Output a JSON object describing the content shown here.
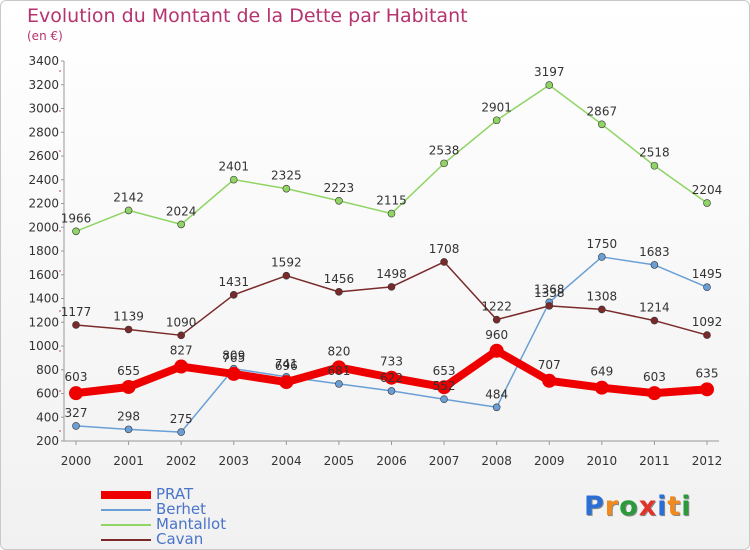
{
  "title": "Evolution du Montant de la Dette par Habitant",
  "subtitle": "(en €)",
  "logo": {
    "text": "Proxiti",
    "letters": [
      "P",
      "r",
      "o",
      "x",
      "i",
      "t",
      "i"
    ],
    "colors": [
      "#2b6fd6",
      "#f08a1c",
      "#2b9a3a",
      "#e2332a",
      "#2b6fd6",
      "#f08a1c",
      "#2b9a3a"
    ]
  },
  "chart_data": {
    "type": "line",
    "title": "Evolution du Montant de la Dette par Habitant",
    "ylabel": "(en €)",
    "xlabel": "",
    "ylim": [
      200,
      3400
    ],
    "yticks": [
      200,
      400,
      600,
      800,
      1000,
      1200,
      1400,
      1600,
      1800,
      2000,
      2200,
      2400,
      2600,
      2800,
      3000,
      3200,
      3400
    ],
    "x": [
      "2000",
      "2001",
      "2002",
      "2003",
      "2004",
      "2005",
      "2006",
      "2007",
      "2008",
      "2009",
      "2010",
      "2011",
      "2012"
    ],
    "grid": false,
    "legend": "bottom-left",
    "series": [
      {
        "name": "PRAT",
        "color": "#ee0000",
        "width": 8,
        "marker": 7,
        "values": [
          603,
          655,
          827,
          765,
          696,
          820,
          733,
          653,
          960,
          707,
          649,
          603,
          635
        ],
        "labels": [
          "603",
          "655",
          "827",
          "765",
          "696",
          "820",
          "733",
          "653",
          "960",
          "707",
          "649",
          "603",
          "635"
        ]
      },
      {
        "name": "Berhet",
        "color": "#6a9fd6",
        "width": 1.5,
        "marker": 3.5,
        "values": [
          327,
          298,
          275,
          809,
          741,
          681,
          622,
          552,
          484,
          1368,
          1750,
          1683,
          1495
        ],
        "labels": [
          "327",
          "298",
          "275",
          "809",
          "741",
          "681",
          "622",
          "552",
          "484",
          "1368",
          "1750",
          "1683",
          "1495"
        ]
      },
      {
        "name": "Mantallot",
        "color": "#8fd464",
        "width": 1.5,
        "marker": 3.5,
        "values": [
          1966,
          2142,
          2024,
          2401,
          2325,
          2223,
          2115,
          2538,
          2901,
          3197,
          2867,
          2518,
          2204
        ],
        "labels": [
          "1966",
          "2142",
          "2024",
          "2401",
          "2325",
          "2223",
          "2115",
          "2538",
          "2901",
          "3197",
          "2867",
          "2518",
          "2204"
        ]
      },
      {
        "name": "Cavan",
        "color": "#7a2a2a",
        "width": 1.5,
        "marker": 3.5,
        "values": [
          1177,
          1139,
          1090,
          1431,
          1592,
          1456,
          1498,
          1708,
          1222,
          1338,
          1308,
          1214,
          1092
        ],
        "labels": [
          "1177",
          "1139",
          "1090",
          "1431",
          "1592",
          "1456",
          "1498",
          "1708",
          "1222",
          "1338",
          "1308",
          "1214",
          "1092"
        ]
      }
    ]
  }
}
